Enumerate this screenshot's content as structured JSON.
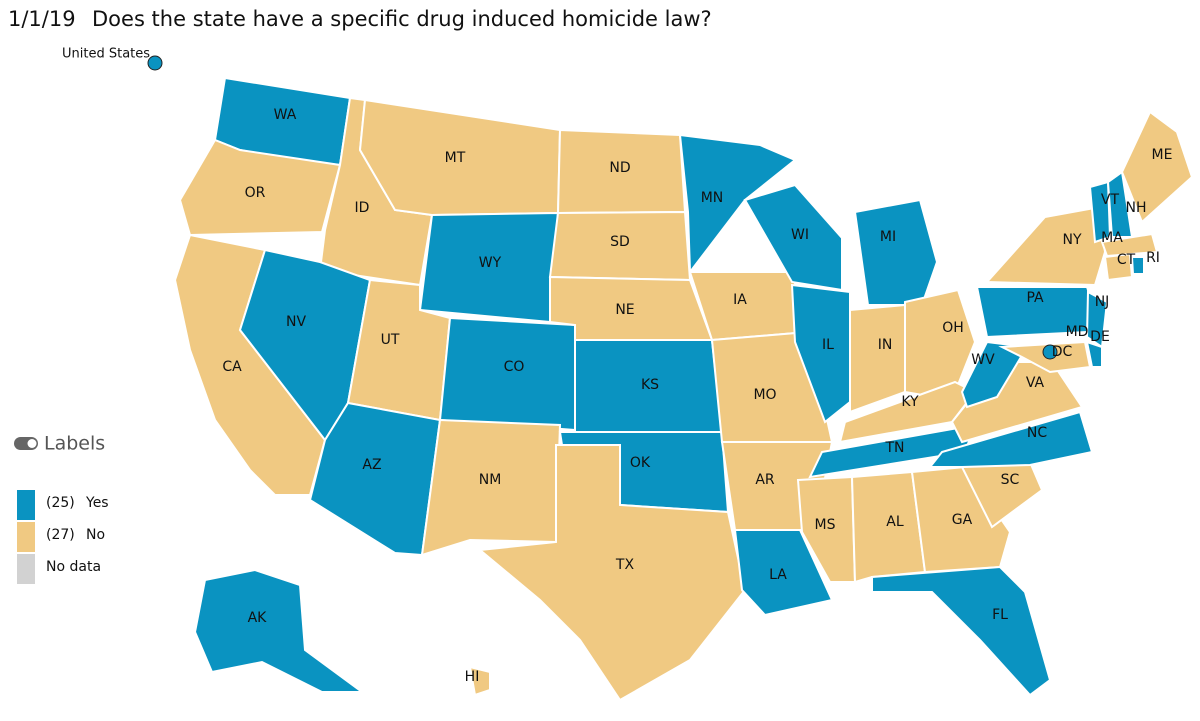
{
  "header": {
    "date": "1/1/19",
    "title": "Does the state have a specific drug induced homicide law?"
  },
  "national": {
    "label": "United States",
    "status": "yes"
  },
  "colors": {
    "yes": "#0a93c1",
    "no": "#f0c982",
    "nodata": "#d2d2d2"
  },
  "toggle": {
    "label": "Labels"
  },
  "legend": [
    {
      "count": "(25)",
      "label": "Yes",
      "status": "yes"
    },
    {
      "count": "(27)",
      "label": "No",
      "status": "no"
    },
    {
      "label": "No data",
      "status": "nodata"
    }
  ],
  "states": [
    {
      "abbr": "WA",
      "status": "yes"
    },
    {
      "abbr": "OR",
      "status": "no"
    },
    {
      "abbr": "CA",
      "status": "no"
    },
    {
      "abbr": "ID",
      "status": "no"
    },
    {
      "abbr": "NV",
      "status": "yes"
    },
    {
      "abbr": "MT",
      "status": "no"
    },
    {
      "abbr": "WY",
      "status": "yes"
    },
    {
      "abbr": "UT",
      "status": "no"
    },
    {
      "abbr": "AZ",
      "status": "yes"
    },
    {
      "abbr": "CO",
      "status": "yes"
    },
    {
      "abbr": "NM",
      "status": "no"
    },
    {
      "abbr": "ND",
      "status": "no"
    },
    {
      "abbr": "SD",
      "status": "no"
    },
    {
      "abbr": "NE",
      "status": "no"
    },
    {
      "abbr": "KS",
      "status": "yes"
    },
    {
      "abbr": "OK",
      "status": "yes"
    },
    {
      "abbr": "TX",
      "status": "no"
    },
    {
      "abbr": "MN",
      "status": "yes"
    },
    {
      "abbr": "IA",
      "status": "no"
    },
    {
      "abbr": "MO",
      "status": "no"
    },
    {
      "abbr": "AR",
      "status": "no"
    },
    {
      "abbr": "LA",
      "status": "yes"
    },
    {
      "abbr": "WI",
      "status": "yes"
    },
    {
      "abbr": "IL",
      "status": "yes"
    },
    {
      "abbr": "MI",
      "status": "yes"
    },
    {
      "abbr": "IN",
      "status": "no"
    },
    {
      "abbr": "OH",
      "status": "no"
    },
    {
      "abbr": "KY",
      "status": "no"
    },
    {
      "abbr": "TN",
      "status": "yes"
    },
    {
      "abbr": "MS",
      "status": "no"
    },
    {
      "abbr": "AL",
      "status": "no"
    },
    {
      "abbr": "GA",
      "status": "no"
    },
    {
      "abbr": "FL",
      "status": "yes"
    },
    {
      "abbr": "SC",
      "status": "no"
    },
    {
      "abbr": "NC",
      "status": "yes"
    },
    {
      "abbr": "VA",
      "status": "no"
    },
    {
      "abbr": "WV",
      "status": "yes"
    },
    {
      "abbr": "PA",
      "status": "yes"
    },
    {
      "abbr": "NY",
      "status": "no"
    },
    {
      "abbr": "NJ",
      "status": "yes"
    },
    {
      "abbr": "DE",
      "status": "yes"
    },
    {
      "abbr": "MD",
      "status": "no"
    },
    {
      "abbr": "CT",
      "status": "no"
    },
    {
      "abbr": "RI",
      "status": "yes"
    },
    {
      "abbr": "MA",
      "status": "no"
    },
    {
      "abbr": "VT",
      "status": "yes"
    },
    {
      "abbr": "NH",
      "status": "yes"
    },
    {
      "abbr": "ME",
      "status": "no"
    },
    {
      "abbr": "AK",
      "status": "yes"
    },
    {
      "abbr": "HI",
      "status": "no"
    },
    {
      "abbr": "DC",
      "status": "yes"
    }
  ]
}
